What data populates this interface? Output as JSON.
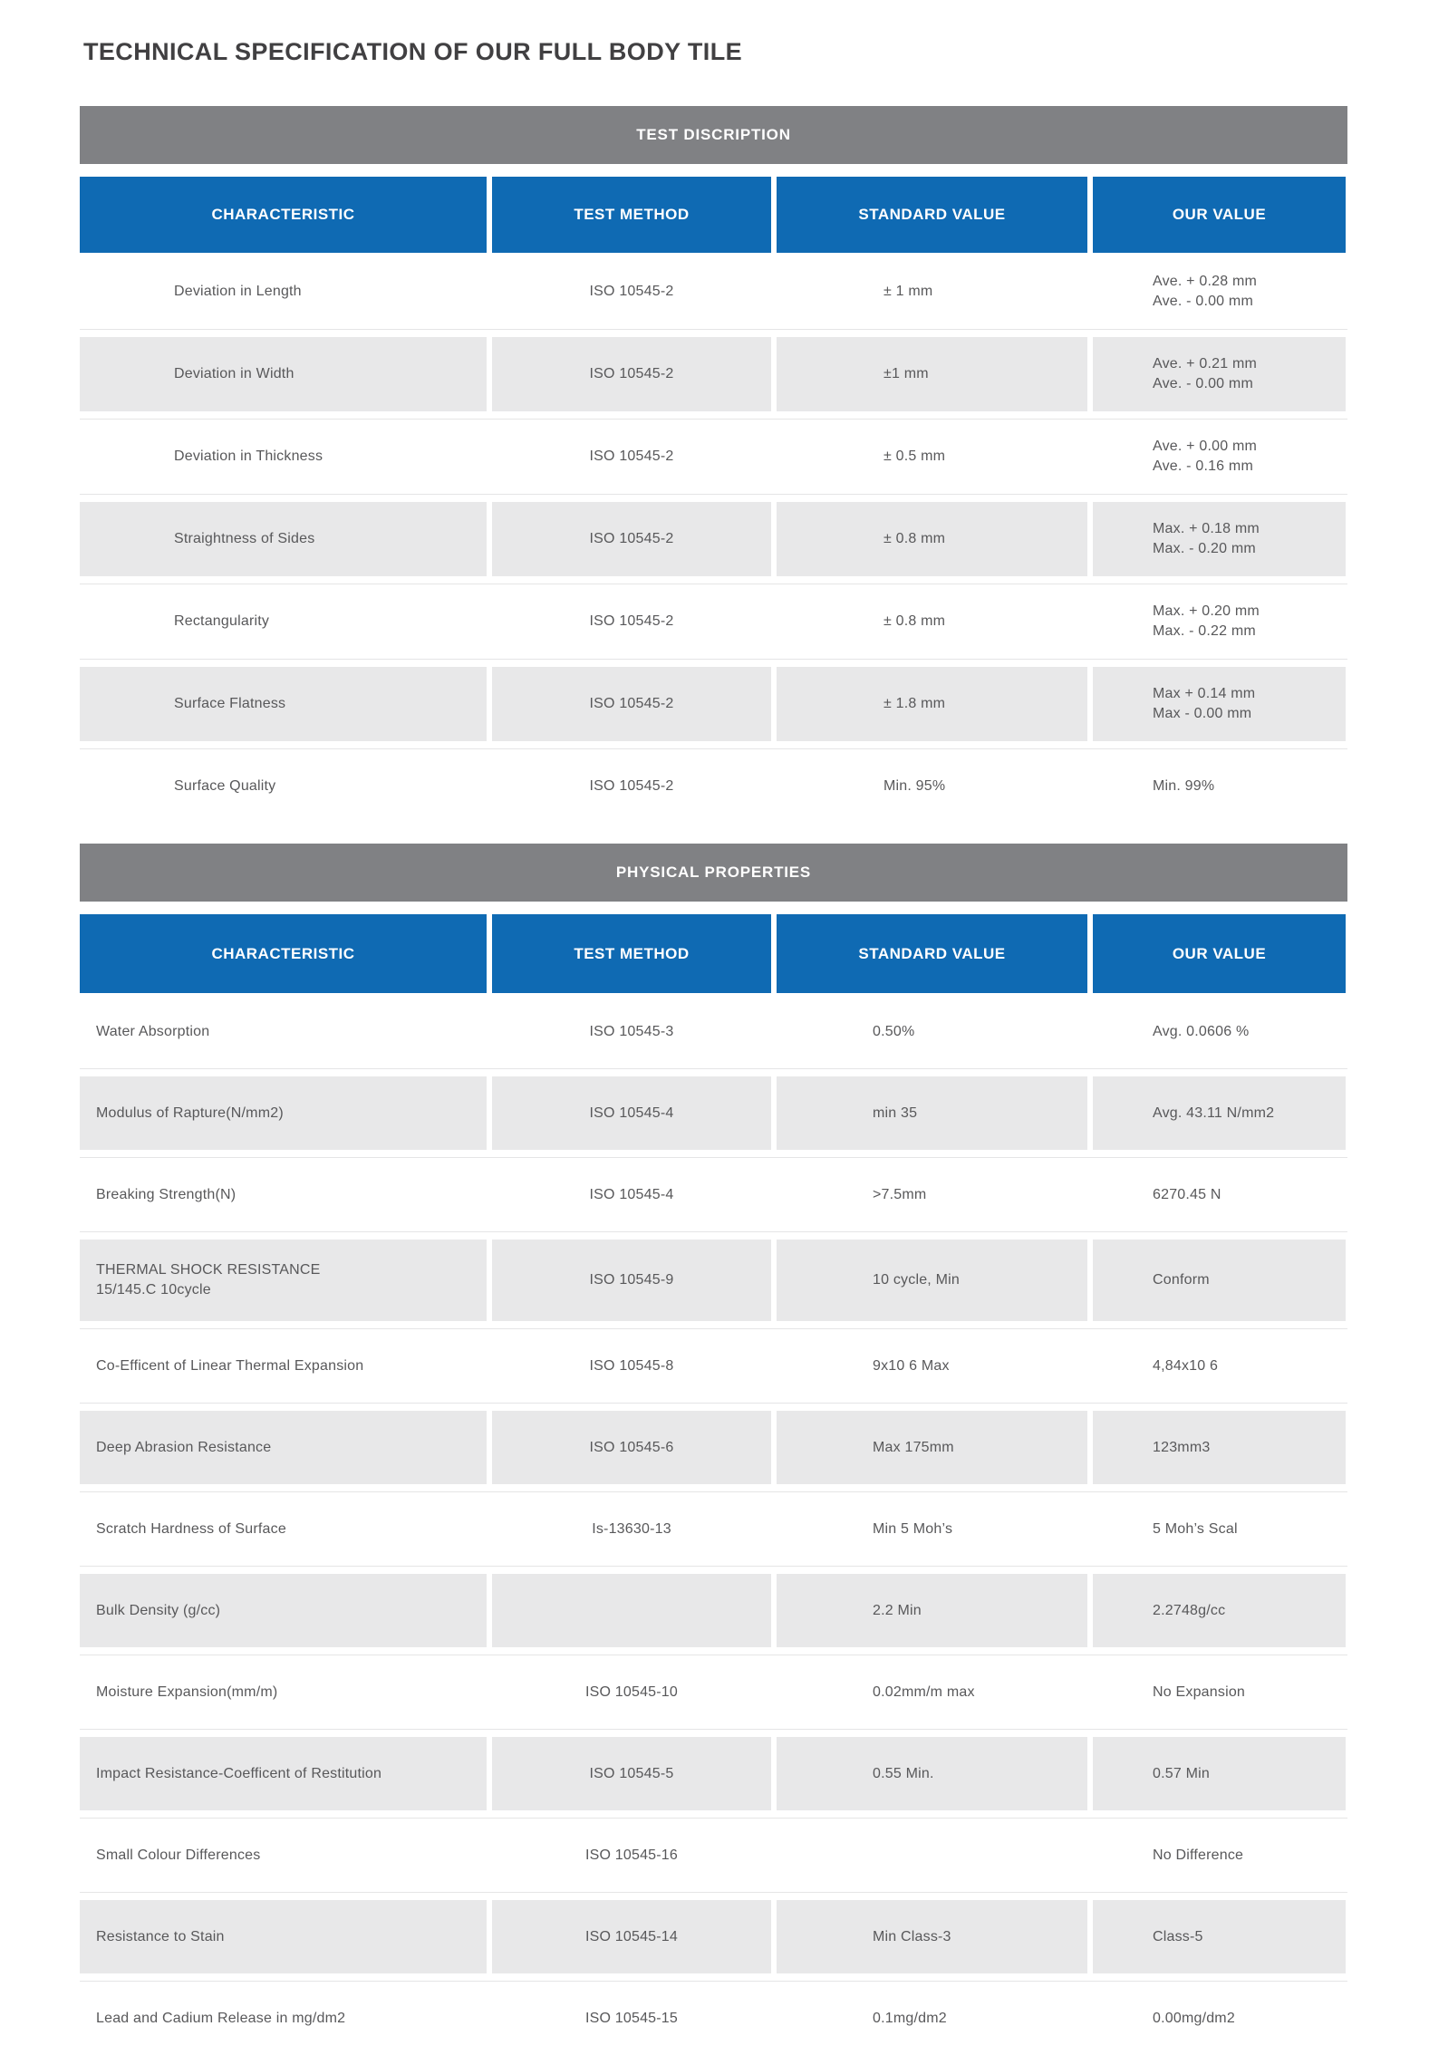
{
  "page_title": "TECHNICAL SPECIFICATION OF OUR FULL BODY TILE",
  "colors": {
    "header_blue": "#0f6ab3",
    "section_gray": "#808184",
    "stripe_gray": "#e8e8e9",
    "text_gray": "#58585a",
    "title_gray": "#414042"
  },
  "columns": [
    "CHARACTERISTIC",
    "TEST METHOD",
    "STANDARD VALUE",
    "OUR VALUE"
  ],
  "sections": [
    {
      "heading": "TEST DISCRIPTION",
      "rows": [
        {
          "characteristic": [
            "Deviation in Length"
          ],
          "test_method": "ISO 10545-2",
          "standard_value": "± 1 mm",
          "our_value": [
            "Ave. + 0.28 mm",
            "Ave. - 0.00 mm"
          ]
        },
        {
          "characteristic": [
            "Deviation in Width"
          ],
          "test_method": "ISO 10545-2",
          "standard_value": "±1 mm",
          "our_value": [
            "Ave. + 0.21 mm",
            "Ave. - 0.00 mm"
          ]
        },
        {
          "characteristic": [
            "Deviation in Thickness"
          ],
          "test_method": "ISO 10545-2",
          "standard_value": "± 0.5 mm",
          "our_value": [
            "Ave. + 0.00 mm",
            "Ave. - 0.16 mm"
          ]
        },
        {
          "characteristic": [
            "Straightness of Sides"
          ],
          "test_method": "ISO 10545-2",
          "standard_value": "± 0.8 mm",
          "our_value": [
            "Max. + 0.18 mm",
            "Max. - 0.20 mm"
          ]
        },
        {
          "characteristic": [
            "Rectangularity"
          ],
          "test_method": "ISO 10545-2",
          "standard_value": "± 0.8 mm",
          "our_value": [
            "Max. + 0.20 mm",
            "Max. - 0.22 mm"
          ]
        },
        {
          "characteristic": [
            "Surface Flatness"
          ],
          "test_method": "ISO 10545-2",
          "standard_value": "± 1.8 mm",
          "our_value": [
            "Max + 0.14 mm",
            "Max - 0.00 mm"
          ]
        },
        {
          "characteristic": [
            "Surface Quality"
          ],
          "test_method": "ISO 10545-2",
          "standard_value": "Min. 95%",
          "our_value": [
            "Min. 99%"
          ]
        }
      ]
    },
    {
      "heading": "PHYSICAL PROPERTIES",
      "rows": [
        {
          "characteristic": [
            "Water Absorption"
          ],
          "test_method": "ISO 10545-3",
          "standard_value": "0.50%",
          "our_value": [
            "Avg. 0.0606 %"
          ]
        },
        {
          "characteristic": [
            "Modulus of Rapture(N/mm2)"
          ],
          "test_method": "ISO 10545-4",
          "standard_value": "min 35",
          "our_value": [
            "Avg. 43.11 N/mm2"
          ]
        },
        {
          "characteristic": [
            "Breaking Strength(N)"
          ],
          "test_method": "ISO 10545-4",
          "standard_value": ">7.5mm",
          "our_value": [
            "6270.45 N"
          ]
        },
        {
          "characteristic": [
            "THERMAL SHOCK RESISTANCE",
            "15/145.C 10cycle"
          ],
          "test_method": "ISO 10545-9",
          "standard_value": "10 cycle, Min",
          "our_value": [
            "Conform"
          ]
        },
        {
          "characteristic": [
            "Co-Efficent of Linear Thermal Expansion"
          ],
          "test_method": "ISO 10545-8",
          "standard_value": "9x10 6 Max",
          "our_value": [
            "4,84x10 6"
          ]
        },
        {
          "characteristic": [
            "Deep Abrasion Resistance"
          ],
          "test_method": "ISO 10545-6",
          "standard_value": "Max 175mm",
          "our_value": [
            "123mm3"
          ]
        },
        {
          "characteristic": [
            "Scratch Hardness of Surface"
          ],
          "test_method": "Is-13630-13",
          "standard_value": "Min 5 Moh’s",
          "our_value": [
            "5 Moh’s Scal"
          ]
        },
        {
          "characteristic": [
            "Bulk Density (g/cc)"
          ],
          "test_method": "",
          "standard_value": "2.2 Min",
          "our_value": [
            "2.2748g/cc"
          ]
        },
        {
          "characteristic": [
            "Moisture Expansion(mm/m)"
          ],
          "test_method": "ISO 10545-10",
          "standard_value": "0.02mm/m max",
          "our_value": [
            "No Expansion"
          ]
        },
        {
          "characteristic": [
            "Impact Resistance-Coefficent of Restitution"
          ],
          "test_method": "ISO 10545-5",
          "standard_value": "0.55 Min.",
          "our_value": [
            "0.57 Min"
          ]
        },
        {
          "characteristic": [
            "Small Colour Differences"
          ],
          "test_method": "ISO 10545-16",
          "standard_value": "",
          "our_value": [
            "No Difference"
          ]
        },
        {
          "characteristic": [
            "Resistance to Stain"
          ],
          "test_method": "ISO 10545-14",
          "standard_value": "Min Class-3",
          "our_value": [
            "Class-5"
          ]
        },
        {
          "characteristic": [
            "Lead and Cadium Release in mg/dm2"
          ],
          "test_method": "ISO 10545-15",
          "standard_value": "0.1mg/dm2",
          "our_value": [
            "0.00mg/dm2"
          ]
        }
      ]
    }
  ]
}
